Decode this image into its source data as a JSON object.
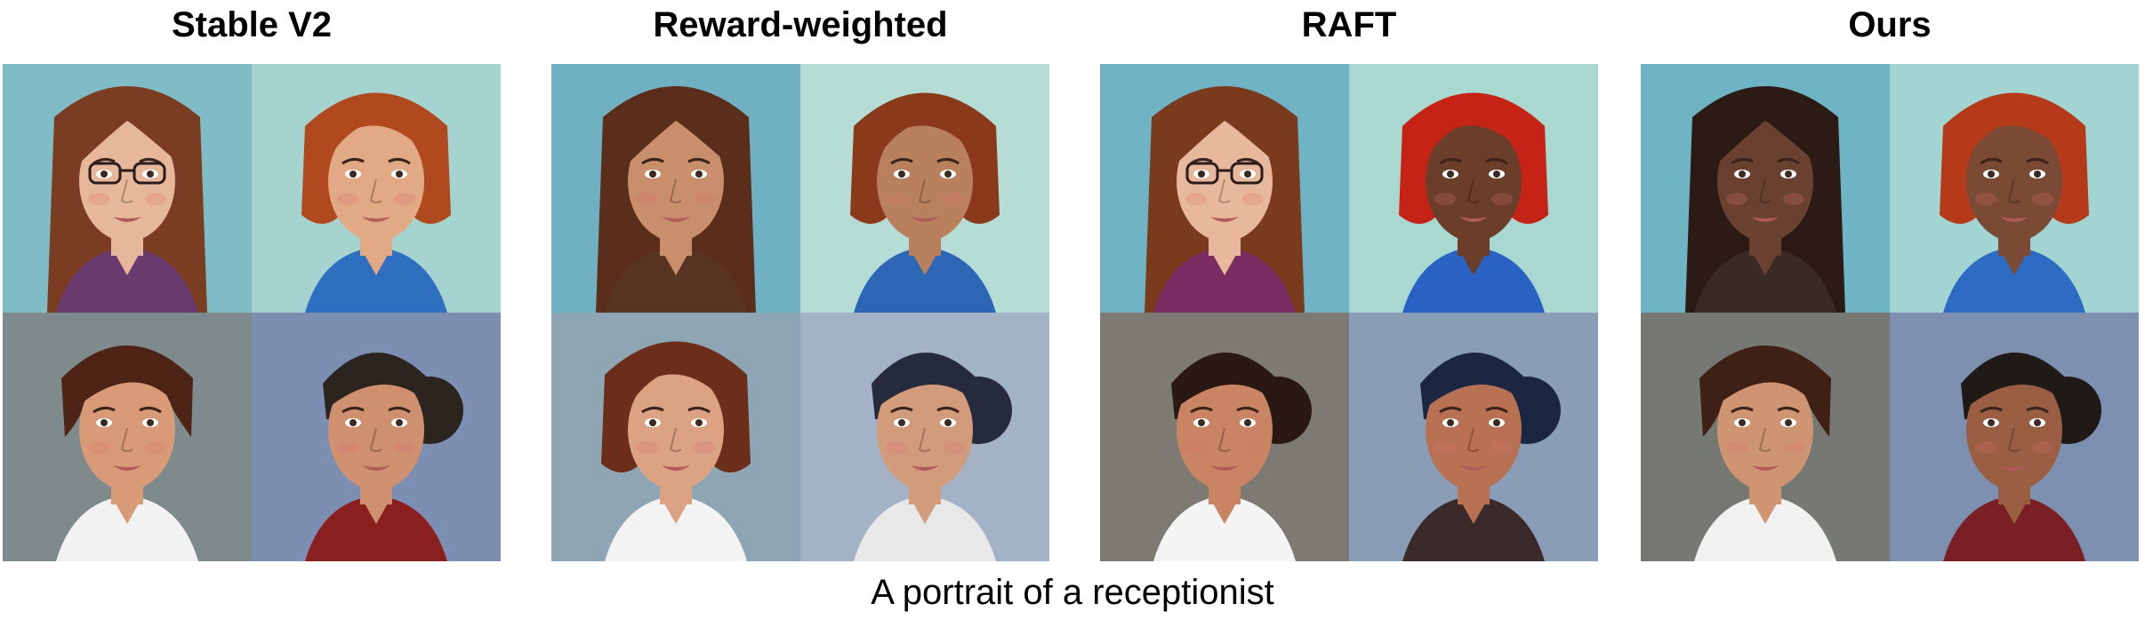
{
  "panels": [
    {
      "title": "Stable V2"
    },
    {
      "title": "Reward-weighted"
    },
    {
      "title": "RAFT"
    },
    {
      "title": "Ours"
    }
  ],
  "caption": "A portrait of a receptionist",
  "portraits": [
    [
      {
        "bg": "#7fbcc6",
        "hair": "#7a3d22",
        "skin": "#e6b79a",
        "top": "#6a3a6e",
        "style": "long-straight",
        "glasses": true
      },
      {
        "bg": "#a5d3cf",
        "hair": "#b04a1e",
        "skin": "#e2a985",
        "top": "#2f6fc0",
        "style": "bob",
        "glasses": false
      },
      {
        "bg": "#7f8a8c",
        "hair": "#4e2416",
        "skin": "#d99a78",
        "top": "#f2f2f2",
        "style": "short",
        "glasses": false
      },
      {
        "bg": "#7c8fb3",
        "hair": "#2b241f",
        "skin": "#cf9070",
        "top": "#8a1f1f",
        "style": "bun",
        "glasses": false
      }
    ],
    [
      {
        "bg": "#6fb0c2",
        "hair": "#5a2e1b",
        "skin": "#c98e6b",
        "top": "#5a3422",
        "style": "long-straight",
        "glasses": false
      },
      {
        "bg": "#b5ddd6",
        "hair": "#8a3a1a",
        "skin": "#b9805e",
        "top": "#2d66b5",
        "style": "bob",
        "glasses": false
      },
      {
        "bg": "#8ea6b3",
        "hair": "#6b2e1a",
        "skin": "#dba283",
        "top": "#f3f3f3",
        "style": "bob",
        "glasses": false
      },
      {
        "bg": "#a3b2c4",
        "hair": "#262a3d",
        "skin": "#d29b7b",
        "top": "#e8e8e8",
        "style": "bun",
        "glasses": false
      }
    ],
    [
      {
        "bg": "#6fb3c4",
        "hair": "#7a3a1c",
        "skin": "#e8b89d",
        "top": "#7b2c63",
        "style": "long-straight",
        "glasses": true
      },
      {
        "bg": "#a9d8d0",
        "hair": "#c42315",
        "skin": "#6b3e2a",
        "top": "#2a62c3",
        "style": "bob",
        "glasses": false
      },
      {
        "bg": "#7c7a72",
        "hair": "#2a1812",
        "skin": "#c98563",
        "top": "#f4f4f4",
        "style": "bun",
        "glasses": false
      },
      {
        "bg": "#8a9db6",
        "hair": "#1b2642",
        "skin": "#b87152",
        "top": "#3a2a2a",
        "style": "bun",
        "glasses": false
      }
    ],
    [
      {
        "bg": "#6eb4c4",
        "hair": "#2c1a14",
        "skin": "#6a4030",
        "top": "#3a2a24",
        "style": "long-straight",
        "glasses": false
      },
      {
        "bg": "#a2d4d2",
        "hair": "#b53a19",
        "skin": "#7a4a34",
        "top": "#2e6bc2",
        "style": "bob",
        "glasses": false
      },
      {
        "bg": "#767873",
        "hair": "#3e2015",
        "skin": "#cf9472",
        "top": "#f1f1f1",
        "style": "short",
        "glasses": false
      },
      {
        "bg": "#7e90b0",
        "hair": "#1f1a18",
        "skin": "#9a5e43",
        "top": "#7a1f24",
        "style": "bun",
        "glasses": false
      }
    ]
  ]
}
